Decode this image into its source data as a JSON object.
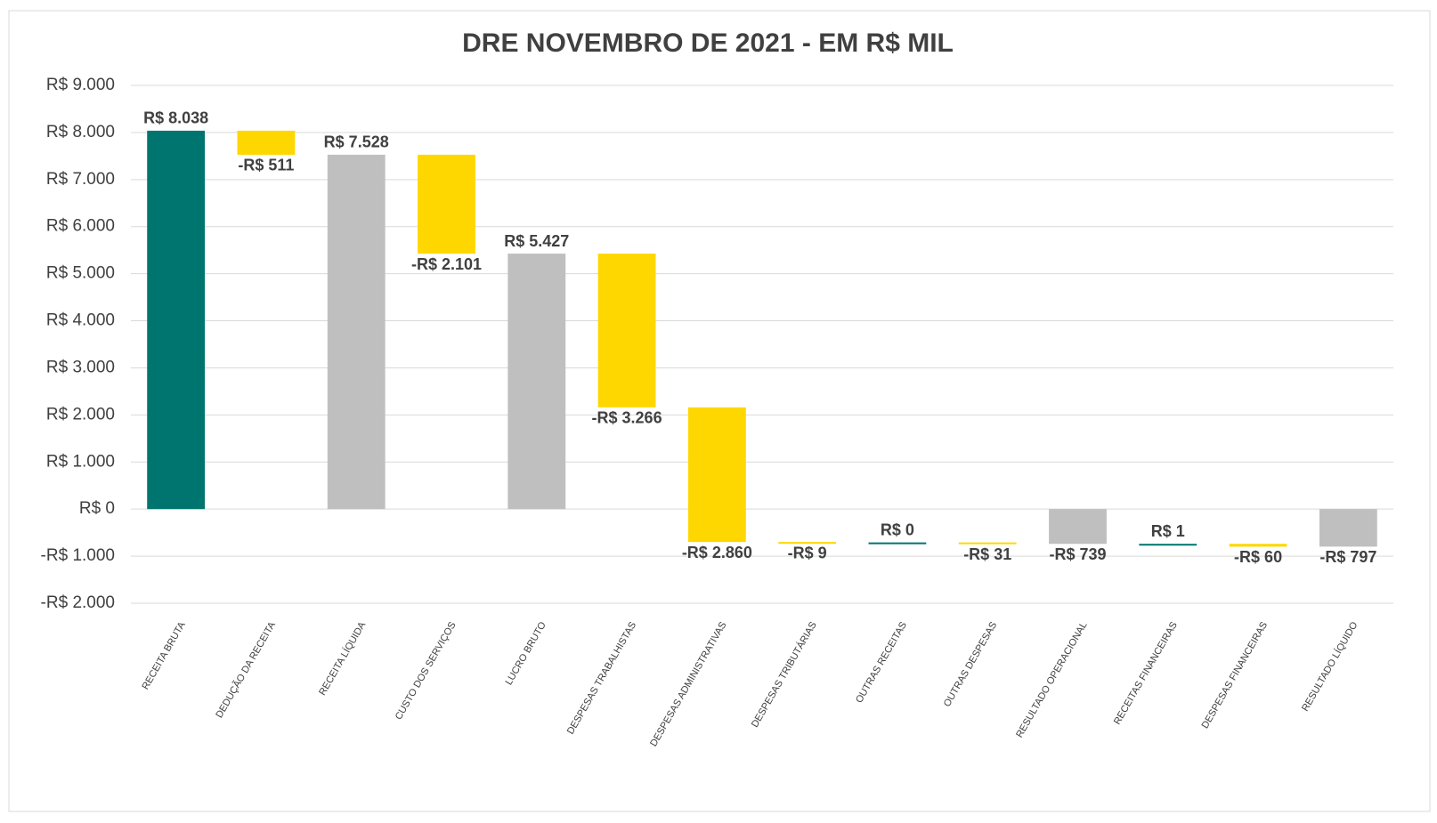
{
  "chart_data": {
    "type": "waterfall",
    "title": "DRE NOVEMBRO DE 2021 - EM R$ MIL",
    "categories": [
      "RECEITA BRUTA",
      "DEDUÇÃO DA RECEITA",
      "RECEITA LÍQUIDA",
      "CUSTO DOS SERVIÇOS",
      "LUCRO BRUTO",
      "DESPESAS TRABALHISTAS",
      "DESPESAS ADMINISTRATIVAS",
      "DESPESAS TRIBUTÁRIAS",
      "OUTRAS RECEITAS",
      "OUTRAS DESPESAS",
      "RESULTADO OPERACIONAL",
      "RECEITAS FINANCEIRAS",
      "DESPESAS FINANCEIRAS",
      "RESULTADO LÍQUIDO"
    ],
    "values": [
      8038,
      -511,
      7528,
      -2101,
      5427,
      -3266,
      -2860,
      -9,
      0,
      -31,
      -739,
      1,
      -60,
      -797
    ],
    "value_labels": [
      "R$ 8.038",
      "-R$ 511",
      "R$ 7.528",
      "-R$ 2.101",
      "R$ 5.427",
      "-R$ 3.266",
      "-R$ 2.860",
      "-R$ 9",
      "R$ 0",
      "-R$ 31",
      "-R$ 739",
      "R$ 1",
      "-R$ 60",
      "-R$ 797"
    ],
    "totals": [
      2,
      4,
      10,
      13
    ],
    "increase_color": "#00756f",
    "decrease_color": "#ffd700",
    "total_color": "#bfbfbf",
    "ylim": [
      -2000,
      9000
    ],
    "yticks": [
      {
        "value": -2000,
        "label": "-R$ 2.000"
      },
      {
        "value": -1000,
        "label": "-R$ 1.000"
      },
      {
        "value": 0,
        "label": "R$ 0"
      },
      {
        "value": 1000,
        "label": "R$ 1.000"
      },
      {
        "value": 2000,
        "label": "R$ 2.000"
      },
      {
        "value": 3000,
        "label": "R$ 3.000"
      },
      {
        "value": 4000,
        "label": "R$ 4.000"
      },
      {
        "value": 5000,
        "label": "R$ 5.000"
      },
      {
        "value": 6000,
        "label": "R$ 6.000"
      },
      {
        "value": 7000,
        "label": "R$ 7.000"
      },
      {
        "value": 8000,
        "label": "R$ 8.000"
      },
      {
        "value": 9000,
        "label": "R$ 9.000"
      }
    ],
    "grid": true
  }
}
